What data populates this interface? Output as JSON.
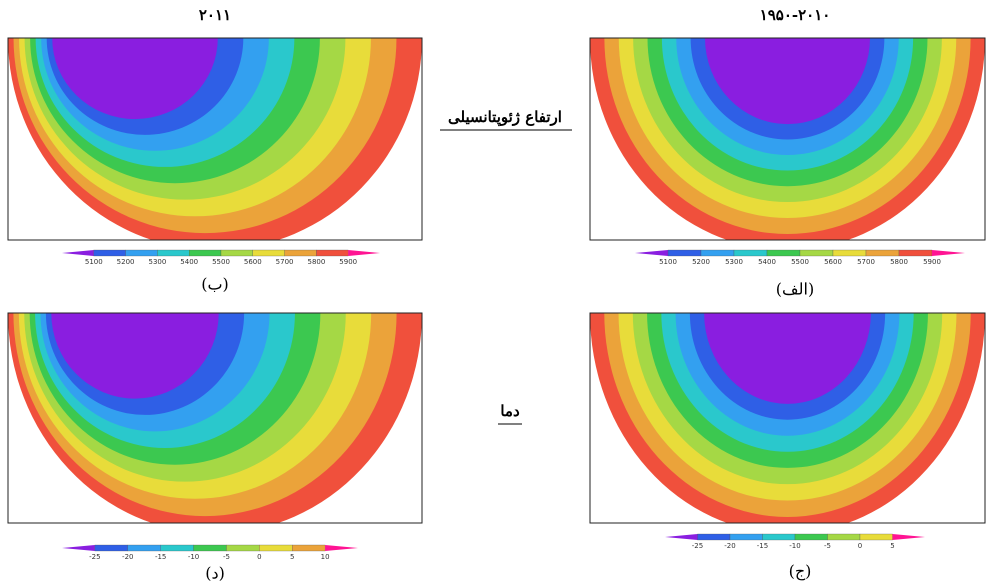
{
  "row_labels": [
    "ارتفاع ژئوپتانسیلی",
    "دما"
  ],
  "panels": [
    {
      "title": "۲۰۱۱",
      "caption": "(ب)",
      "colorbar": [
        5100,
        5200,
        5300,
        5400,
        5500,
        5600,
        5700,
        5800,
        5900
      ]
    },
    {
      "title": "۱۹۵۰-۲۰۱۰",
      "caption": "(الف)",
      "colorbar": [
        5100,
        5200,
        5300,
        5400,
        5500,
        5600,
        5700,
        5800,
        5900
      ]
    },
    {
      "caption": "(د)",
      "colorbar": [
        -25,
        -20,
        -15,
        -10,
        -5,
        0,
        5,
        10
      ]
    },
    {
      "caption": "(ج)",
      "colorbar": [
        -25,
        -20,
        -15,
        -10,
        -5,
        0,
        5
      ]
    }
  ]
}
